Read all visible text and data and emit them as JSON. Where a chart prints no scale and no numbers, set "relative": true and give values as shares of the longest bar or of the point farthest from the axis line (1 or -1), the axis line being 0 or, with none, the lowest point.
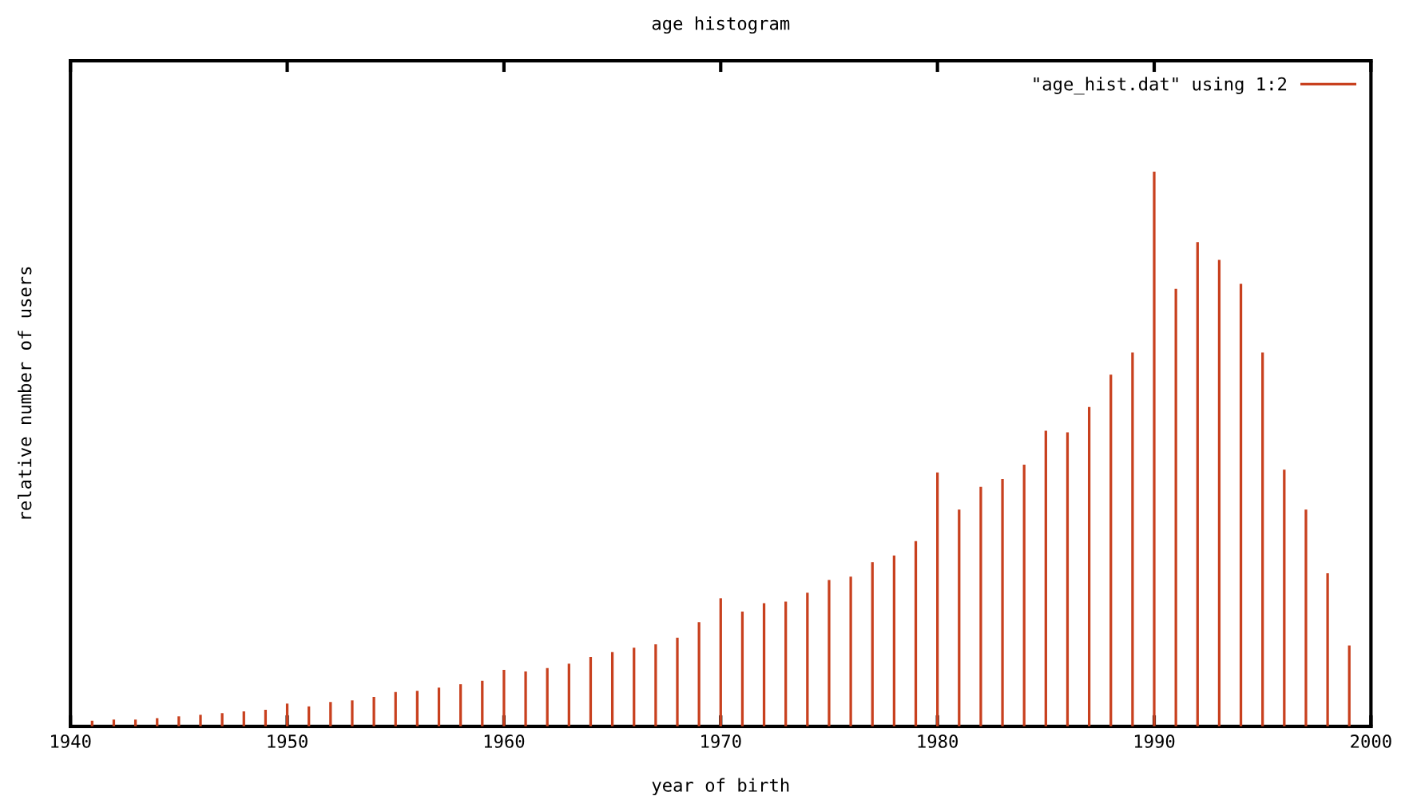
{
  "chart_data": {
    "type": "bar",
    "relative": true,
    "title": "age histogram",
    "xlabel": "year of birth",
    "ylabel": "relative number of users",
    "x": [
      1941,
      1942,
      1943,
      1944,
      1945,
      1946,
      1947,
      1948,
      1949,
      1950,
      1951,
      1952,
      1953,
      1954,
      1955,
      1956,
      1957,
      1958,
      1959,
      1960,
      1961,
      1962,
      1963,
      1964,
      1965,
      1966,
      1967,
      1968,
      1969,
      1970,
      1971,
      1972,
      1973,
      1974,
      1975,
      1976,
      1977,
      1978,
      1979,
      1980,
      1981,
      1982,
      1983,
      1984,
      1985,
      1986,
      1987,
      1988,
      1989,
      1990,
      1991,
      1992,
      1993,
      1994,
      1995,
      1996,
      1997,
      1998,
      1999
    ],
    "series": [
      {
        "name": "\"age_hist.dat\" using 1:2",
        "color": "#c8401e",
        "values": [
          0.01,
          0.0125,
          0.0125,
          0.015,
          0.018,
          0.021,
          0.024,
          0.027,
          0.03,
          0.041,
          0.036,
          0.044,
          0.047,
          0.053,
          0.062,
          0.064,
          0.07,
          0.076,
          0.082,
          0.102,
          0.099,
          0.105,
          0.113,
          0.125,
          0.134,
          0.142,
          0.148,
          0.16,
          0.188,
          0.231,
          0.207,
          0.222,
          0.225,
          0.241,
          0.264,
          0.27,
          0.296,
          0.308,
          0.334,
          0.458,
          0.391,
          0.432,
          0.446,
          0.472,
          0.533,
          0.53,
          0.576,
          0.634,
          0.674,
          1.0,
          0.789,
          0.873,
          0.841,
          0.798,
          0.674,
          0.463,
          0.391,
          0.276,
          0.146
        ]
      }
    ],
    "xlim": [
      1940,
      2000
    ],
    "xticks": [
      1940,
      1950,
      1960,
      1970,
      1980,
      1990,
      2000
    ],
    "legend": "top right",
    "grid": false
  }
}
